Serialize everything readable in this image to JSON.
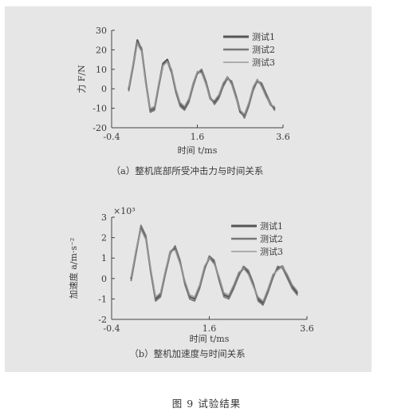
{
  "figure": {
    "title": "图 9  试验结果"
  },
  "chart_data": [
    {
      "type": "line",
      "caption": "（a）整机底部所受冲击力与时间关系",
      "xlabel": "时间    t/ms",
      "ylabel": "力  F/N",
      "xlim": [
        -0.4,
        3.6
      ],
      "ylim": [
        -20,
        30
      ],
      "xticks": [
        "-0.4",
        "1.6",
        "3.6"
      ],
      "yticks": [
        "30",
        "20",
        "10",
        "0",
        "-10",
        "-20"
      ],
      "legend_position": "top-right",
      "series": [
        {
          "name": "测试1",
          "color": "#555555",
          "x": [
            0.0,
            0.1,
            0.2,
            0.3,
            0.4,
            0.5,
            0.6,
            0.7,
            0.8,
            0.9,
            1.0,
            1.1,
            1.2,
            1.3,
            1.4,
            1.5,
            1.6,
            1.7,
            1.8,
            1.9,
            2.0,
            2.1,
            2.2,
            2.3,
            2.4,
            2.5,
            2.6,
            2.7,
            2.8,
            2.9,
            3.0,
            3.1,
            3.2,
            3.3,
            3.4
          ],
          "y": [
            0,
            12,
            25,
            20,
            3,
            -11,
            -10,
            2,
            13,
            15,
            9,
            -1,
            -8,
            -10,
            -6,
            2,
            8,
            9,
            3,
            -5,
            -7,
            -4,
            2,
            6,
            3,
            -4,
            -12,
            -14,
            -8,
            0,
            4,
            2,
            -3,
            -8,
            -10
          ]
        },
        {
          "name": "测试2",
          "color": "#777777",
          "x": [
            0.0,
            0.1,
            0.2,
            0.3,
            0.4,
            0.5,
            0.6,
            0.7,
            0.8,
            0.9,
            1.0,
            1.1,
            1.2,
            1.3,
            1.4,
            1.5,
            1.6,
            1.7,
            1.8,
            1.9,
            2.0,
            2.1,
            2.2,
            2.3,
            2.4,
            2.5,
            2.6,
            2.7,
            2.8,
            2.9,
            3.0,
            3.1,
            3.2,
            3.3,
            3.4
          ],
          "y": [
            -1,
            11,
            24,
            21,
            4,
            -12,
            -11,
            1,
            12,
            14,
            8,
            -2,
            -9,
            -11,
            -7,
            1,
            8,
            10,
            4,
            -4,
            -8,
            -5,
            1,
            5,
            4,
            -3,
            -11,
            -15,
            -9,
            -1,
            4,
            3,
            -2,
            -7,
            -11
          ]
        },
        {
          "name": "测试3",
          "color": "#9a9a9a",
          "x": [
            0.0,
            0.1,
            0.2,
            0.3,
            0.4,
            0.5,
            0.6,
            0.7,
            0.8,
            0.9,
            1.0,
            1.1,
            1.2,
            1.3,
            1.4,
            1.5,
            1.6,
            1.7,
            1.8,
            1.9,
            2.0,
            2.1,
            2.2,
            2.3,
            2.4,
            2.5,
            2.6,
            2.7,
            2.8,
            2.9,
            3.0,
            3.1,
            3.2,
            3.3,
            3.4
          ],
          "y": [
            1,
            13,
            23,
            19,
            2,
            -10,
            -9,
            3,
            12,
            14,
            10,
            0,
            -7,
            -9,
            -5,
            3,
            9,
            8,
            2,
            -5,
            -6,
            -3,
            3,
            6,
            2,
            -5,
            -11,
            -13,
            -7,
            1,
            5,
            1,
            -4,
            -8,
            -9
          ]
        }
      ]
    },
    {
      "type": "line",
      "caption": "（b）整机加速度与时间关系",
      "xlabel": "时间    t/ms",
      "ylabel": "加速度    a/m·s⁻²",
      "scale_label": "×10³",
      "xlim": [
        -0.4,
        3.6
      ],
      "ylim": [
        -2,
        3
      ],
      "xticks": [
        "-0.4",
        "1.6",
        "3.6"
      ],
      "yticks": [
        "3",
        "2",
        "1",
        "0",
        "-1",
        "-2"
      ],
      "legend_position": "top-right",
      "series": [
        {
          "name": "测试1",
          "color": "#555555",
          "x": [
            0.0,
            0.1,
            0.2,
            0.3,
            0.4,
            0.5,
            0.6,
            0.7,
            0.8,
            0.9,
            1.0,
            1.1,
            1.2,
            1.3,
            1.4,
            1.5,
            1.6,
            1.7,
            1.8,
            1.9,
            2.0,
            2.1,
            2.2,
            2.3,
            2.4,
            2.5,
            2.6,
            2.7,
            2.8,
            2.9,
            3.0,
            3.1,
            3.2,
            3.3,
            3.4
          ],
          "y": [
            0,
            1.3,
            2.5,
            2.0,
            0.4,
            -1.0,
            -0.8,
            0.3,
            1.3,
            1.5,
            0.8,
            -0.2,
            -0.9,
            -1.0,
            -0.4,
            0.5,
            1.0,
            0.8,
            0.0,
            -0.8,
            -0.9,
            -0.4,
            0.2,
            0.5,
            0.3,
            -0.3,
            -1.0,
            -1.2,
            -0.6,
            0.1,
            0.5,
            0.6,
            0.1,
            -0.4,
            -0.7
          ]
        },
        {
          "name": "测试2",
          "color": "#777777",
          "x": [
            0.0,
            0.1,
            0.2,
            0.3,
            0.4,
            0.5,
            0.6,
            0.7,
            0.8,
            0.9,
            1.0,
            1.1,
            1.2,
            1.3,
            1.4,
            1.5,
            1.6,
            1.7,
            1.8,
            1.9,
            2.0,
            2.1,
            2.2,
            2.3,
            2.4,
            2.5,
            2.6,
            2.7,
            2.8,
            2.9,
            3.0,
            3.1,
            3.2,
            3.3,
            3.4
          ],
          "y": [
            -0.1,
            1.2,
            2.6,
            2.1,
            0.3,
            -1.1,
            -0.9,
            0.2,
            1.2,
            1.6,
            0.9,
            -0.3,
            -1.0,
            -1.1,
            -0.5,
            0.4,
            1.1,
            0.9,
            -0.1,
            -0.9,
            -1.0,
            -0.5,
            0.1,
            0.6,
            0.4,
            -0.2,
            -1.1,
            -1.3,
            -0.7,
            0.0,
            0.6,
            0.5,
            0.0,
            -0.5,
            -0.8
          ]
        },
        {
          "name": "测试3",
          "color": "#9a9a9a",
          "x": [
            0.0,
            0.1,
            0.2,
            0.3,
            0.4,
            0.5,
            0.6,
            0.7,
            0.8,
            0.9,
            1.0,
            1.1,
            1.2,
            1.3,
            1.4,
            1.5,
            1.6,
            1.7,
            1.8,
            1.9,
            2.0,
            2.1,
            2.2,
            2.3,
            2.4,
            2.5,
            2.6,
            2.7,
            2.8,
            2.9,
            3.0,
            3.1,
            3.2,
            3.3,
            3.4
          ],
          "y": [
            0.1,
            1.4,
            2.4,
            1.9,
            0.5,
            -0.9,
            -0.7,
            0.4,
            1.3,
            1.4,
            0.7,
            -0.1,
            -0.8,
            -0.9,
            -0.3,
            0.6,
            1.0,
            0.7,
            0.1,
            -0.7,
            -0.8,
            -0.3,
            0.3,
            0.5,
            0.2,
            -0.4,
            -0.9,
            -1.1,
            -0.5,
            0.2,
            0.4,
            0.6,
            0.2,
            -0.3,
            -0.6
          ]
        }
      ]
    }
  ]
}
